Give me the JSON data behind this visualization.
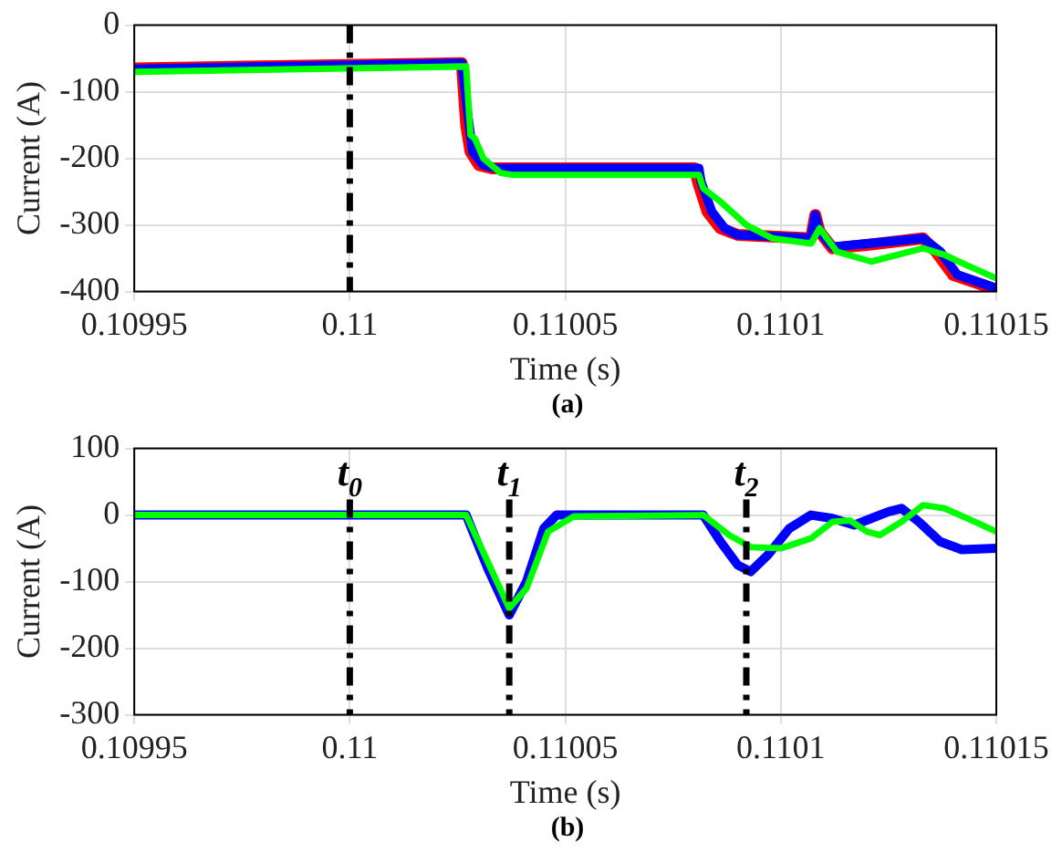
{
  "chart_data": [
    {
      "type": "line",
      "xlabel": "Time (s)",
      "ylabel": "Current (A)",
      "annotations": [
        "(a)"
      ],
      "xlim": [
        0.10995,
        0.11015
      ],
      "xticks": [
        0.10995,
        0.11,
        0.11005,
        0.1101,
        0.11015
      ],
      "ylim": [
        -400,
        0
      ],
      "yticks": [
        -400,
        -300,
        -200,
        -100,
        0
      ],
      "grid": true,
      "line_style": "solid",
      "marker": "none",
      "ref_lines": [
        {
          "axis": "x",
          "value": 0.11,
          "label": null,
          "color": "#000000",
          "line_style": "dashed"
        }
      ],
      "series": [
        {
          "color": "#ff0000",
          "x": [
            0.10995,
            0.110026,
            0.110027,
            0.110028,
            0.11003,
            0.110033,
            0.11008,
            0.110081,
            0.110083,
            0.110086,
            0.11009,
            0.110107,
            0.110108,
            0.110109,
            0.110112,
            0.11012,
            0.110133,
            0.110136,
            0.11014,
            0.11015
          ],
          "values": [
            -65,
            -57,
            -150,
            -190,
            -210,
            -215,
            -215,
            -240,
            -280,
            -305,
            -315,
            -320,
            -285,
            -310,
            -335,
            -330,
            -320,
            -340,
            -375,
            -397
          ]
        },
        {
          "color": "#0000ff",
          "x": [
            0.10995,
            0.110026,
            0.1100275,
            0.1100285,
            0.110031,
            0.110034,
            0.110081,
            0.1100815,
            0.110084,
            0.110087,
            0.11009,
            0.110107,
            0.110108,
            0.110109,
            0.110112,
            0.11012,
            0.110133,
            0.110137,
            0.110141,
            0.11015
          ],
          "values": [
            -66,
            -57,
            -140,
            -190,
            -210,
            -215,
            -215,
            -235,
            -280,
            -305,
            -315,
            -320,
            -285,
            -310,
            -333,
            -328,
            -320,
            -340,
            -375,
            -395
          ]
        },
        {
          "color": "#00ff00",
          "x": [
            0.10995,
            0.110027,
            0.110028,
            0.110029,
            0.110031,
            0.110035,
            0.110038,
            0.110081,
            0.110082,
            0.110086,
            0.110092,
            0.110098,
            0.110107,
            0.110109,
            0.110113,
            0.110121,
            0.110133,
            0.110138,
            0.110143,
            0.11015
          ],
          "values": [
            -70,
            -62,
            -165,
            -170,
            -200,
            -222,
            -225,
            -225,
            -245,
            -265,
            -300,
            -320,
            -328,
            -305,
            -340,
            -355,
            -335,
            -345,
            -360,
            -380
          ]
        }
      ]
    },
    {
      "type": "line",
      "xlabel": "Time (s)",
      "ylabel": "Current (A)",
      "annotations": [
        "(b)"
      ],
      "xlim": [
        0.10995,
        0.11015
      ],
      "xticks": [
        0.10995,
        0.11,
        0.11005,
        0.1101,
        0.11015
      ],
      "ylim": [
        -300,
        100
      ],
      "yticks": [
        -300,
        -200,
        -100,
        0,
        100
      ],
      "grid": true,
      "line_style": "solid",
      "marker": "none",
      "ref_lines": [
        {
          "axis": "x",
          "value": 0.11,
          "label": "t$_{0}$",
          "color": "#000000",
          "line_style": "dashed"
        },
        {
          "axis": "x",
          "value": 0.110037,
          "label": "t$_{1}$",
          "color": "#000000",
          "line_style": "dashed"
        },
        {
          "axis": "x",
          "value": 0.110092,
          "label": "t$_{2}$",
          "color": "#000000",
          "line_style": "dashed"
        }
      ],
      "series": [
        {
          "color": "#0000ff",
          "x": [
            0.10995,
            0.110027,
            0.110032,
            0.110037,
            0.110041,
            0.110045,
            0.110048,
            0.110082,
            0.110086,
            0.11009,
            0.110093,
            0.110097,
            0.110102,
            0.110107,
            0.110112,
            0.110117,
            0.110121,
            0.110125,
            0.110128,
            0.110132,
            0.110137,
            0.110142,
            0.11015
          ],
          "values": [
            0,
            0,
            -80,
            -150,
            -100,
            -20,
            0,
            0,
            -40,
            -75,
            -85,
            -60,
            -20,
            0,
            -5,
            -15,
            -5,
            5,
            10,
            -10,
            -40,
            -52,
            -50
          ]
        },
        {
          "color": "#00ff00",
          "x": [
            0.10995,
            0.110027,
            0.110032,
            0.110037,
            0.110041,
            0.110046,
            0.110052,
            0.110082,
            0.110088,
            0.110093,
            0.1101,
            0.110107,
            0.110112,
            0.110116,
            0.11012,
            0.110123,
            0.110128,
            0.110133,
            0.110138,
            0.110145,
            0.11015
          ],
          "values": [
            0,
            0,
            -70,
            -140,
            -110,
            -25,
            -2,
            0,
            -30,
            -48,
            -50,
            -35,
            -10,
            -8,
            -25,
            -30,
            -10,
            15,
            10,
            -10,
            -25
          ]
        }
      ]
    }
  ]
}
